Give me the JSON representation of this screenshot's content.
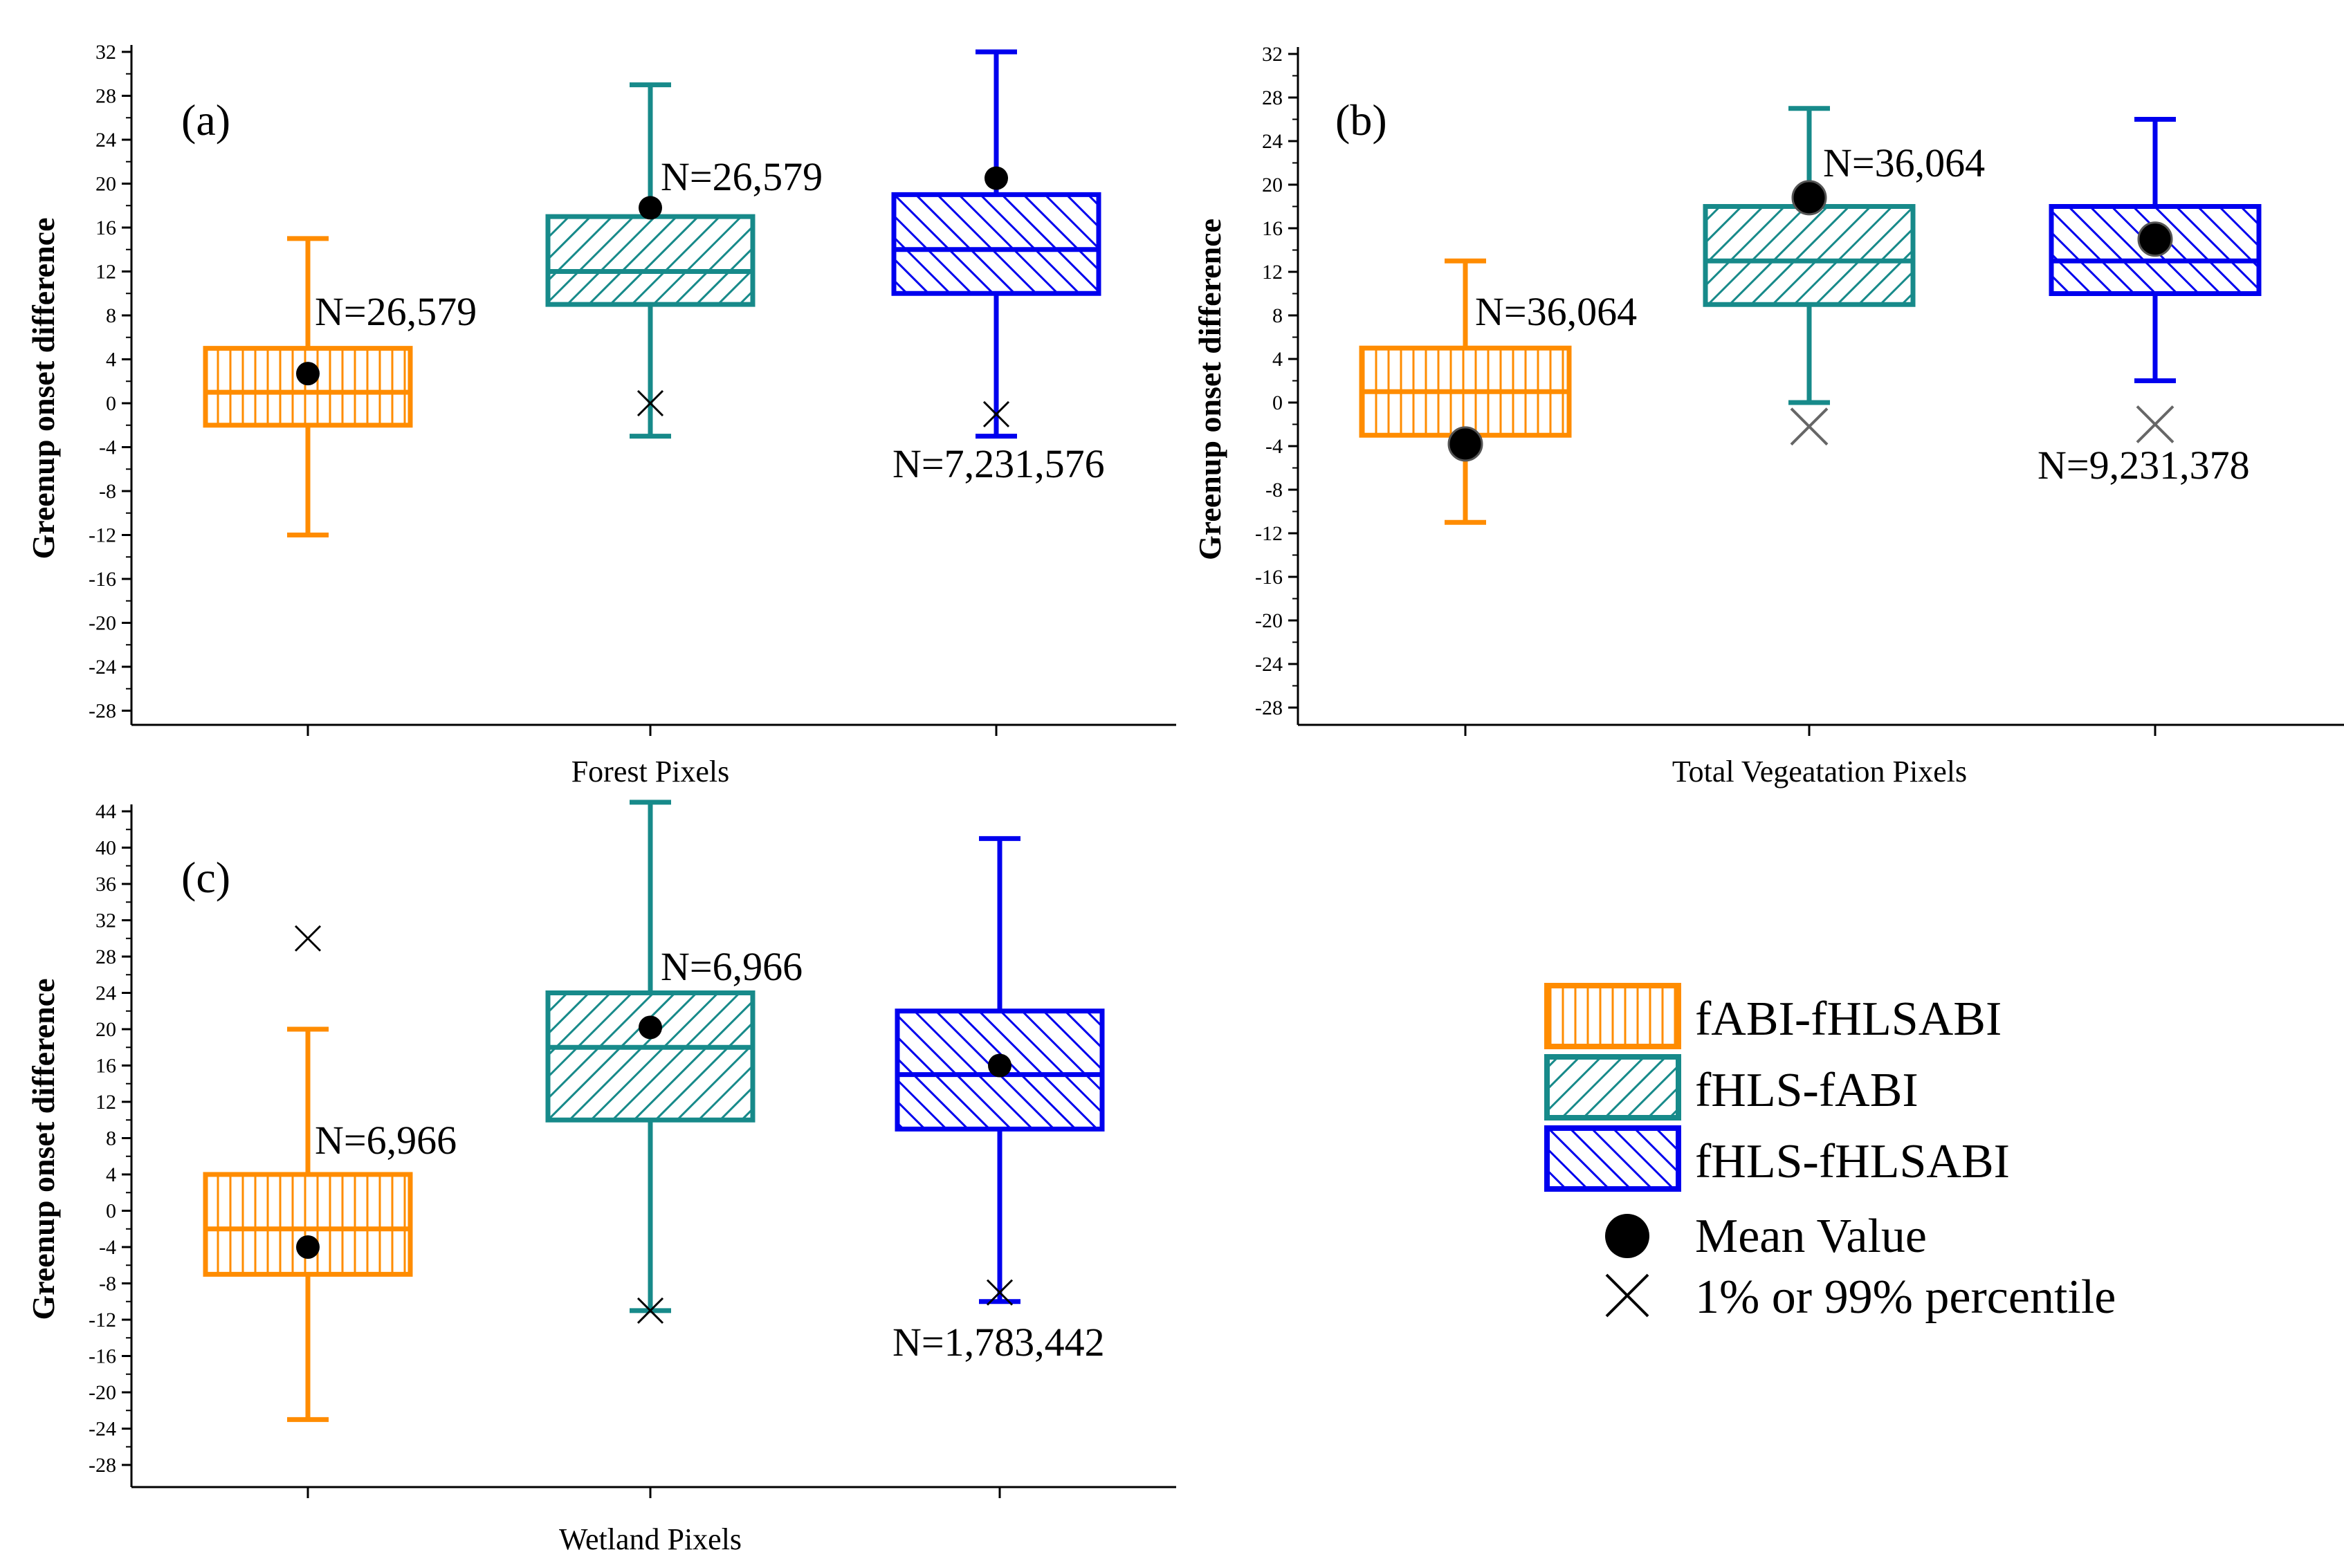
{
  "colors": {
    "fABI-fHLSABI": "#ff8c00",
    "fHLS-fABI": "#178a8a",
    "fHLS-fHLSABI": "#0000ee",
    "mean": "#000000",
    "percentile": "#000000",
    "percentile_gray": "#666666"
  },
  "legend": {
    "series": [
      {
        "name": "fABI-fHLSABI",
        "hatch": "vertical"
      },
      {
        "name": "fHLS-fABI",
        "hatch": "diagonal-up"
      },
      {
        "name": "fHLS-fHLSABI",
        "hatch": "diagonal-down"
      }
    ],
    "mean_label": "Mean Value",
    "percentile_label": "1% or 99% percentile"
  },
  "chart_data": [
    {
      "type": "box",
      "panel": "(a)",
      "xlabel": "Forest Pixels",
      "ylabel": "Greenup onset difference",
      "ylim": [
        -30,
        32
      ],
      "yticks": [
        32,
        28,
        24,
        20,
        16,
        12,
        8,
        4,
        0,
        -4,
        -8,
        -12,
        -16,
        -20,
        -24,
        -28
      ],
      "boxes": [
        {
          "series": "fABI-fHLSABI",
          "whisker_low": -12,
          "q1": -2,
          "median": 1,
          "q3": 5,
          "whisker_high": 15,
          "mean": 2.7,
          "percentile_marker": null,
          "n_label": "N=26,579",
          "n_value": 7.5
        },
        {
          "series": "fHLS-fABI",
          "whisker_low": -3,
          "q1": 9,
          "median": 12,
          "q3": 17,
          "whisker_high": 29,
          "mean": 17.8,
          "percentile_marker": 0,
          "n_label": "N=26,579",
          "n_value": 19.4
        },
        {
          "series": "fHLS-fHLSABI",
          "whisker_low": -3,
          "q1": 10,
          "median": 14,
          "q3": 19,
          "whisker_high": 32,
          "mean": 20.5,
          "percentile_marker": -1,
          "n_label": "N=7,231,576",
          "n_value": -6.4
        }
      ]
    },
    {
      "type": "box",
      "panel": "(b)",
      "xlabel": "Total Vegeatation Pixels",
      "ylabel": "Greenup onset difference",
      "ylim": [
        -30,
        32
      ],
      "yticks": [
        32,
        28,
        24,
        20,
        16,
        12,
        8,
        4,
        0,
        -4,
        -8,
        -12,
        -16,
        -20,
        -24,
        -28
      ],
      "boxes": [
        {
          "series": "fABI-fHLSABI",
          "whisker_low": -11,
          "q1": -3,
          "median": 1,
          "q3": 5,
          "whisker_high": 13,
          "mean": -3.8,
          "percentile_marker": null,
          "n_label": "N=36,064",
          "n_value": 7.3
        },
        {
          "series": "fHLS-fABI",
          "whisker_low": 0,
          "q1": 9,
          "median": 13,
          "q3": 18,
          "whisker_high": 27,
          "mean": 18.8,
          "percentile_marker": -2.2,
          "n_label": "N=36,064",
          "n_value": 21.4
        },
        {
          "series": "fHLS-fHLSABI",
          "whisker_low": 2,
          "q1": 10,
          "median": 13,
          "q3": 18,
          "whisker_high": 26,
          "mean": 15,
          "percentile_marker": -2,
          "n_label": "N=9,231,378",
          "n_value": -7
        }
      ]
    },
    {
      "type": "box",
      "panel": "(c)",
      "xlabel": "Wetland Pixels",
      "ylabel": "Greenup onset difference",
      "ylim": [
        -30,
        45
      ],
      "yticks": [
        44,
        40,
        36,
        32,
        28,
        24,
        20,
        16,
        12,
        8,
        4,
        0,
        -4,
        -8,
        -12,
        -16,
        -20,
        -24,
        -28
      ],
      "boxes": [
        {
          "series": "fABI-fHLSABI",
          "whisker_low": -23,
          "q1": -7,
          "median": -2,
          "q3": 4,
          "whisker_high": 20,
          "mean": -4,
          "percentile_marker": 30,
          "n_label": "N=6,966",
          "n_value": 7
        },
        {
          "series": "fHLS-fABI",
          "whisker_low": -11,
          "q1": 10,
          "median": 18,
          "q3": 24,
          "whisker_high": 45,
          "mean": 20.2,
          "percentile_marker": -11,
          "n_label": "N=6,966",
          "n_value": 27
        },
        {
          "series": "fHLS-fHLSABI",
          "whisker_low": -10,
          "q1": 9,
          "median": 15,
          "q3": 22,
          "whisker_high": 41,
          "mean": 16,
          "percentile_marker": -9,
          "n_label": "N=1,783,442",
          "n_value": -12.3
        }
      ]
    }
  ]
}
